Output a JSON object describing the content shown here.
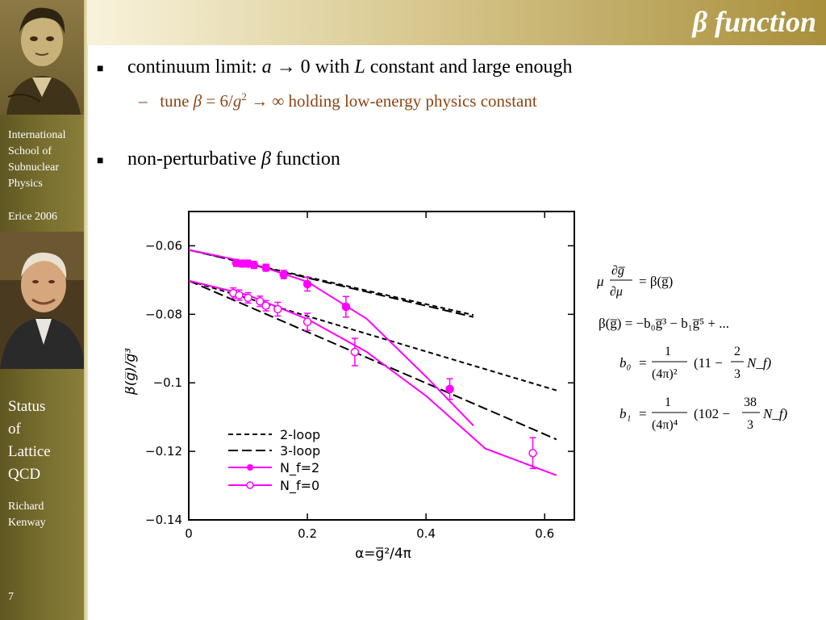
{
  "slide": {
    "title": "β function",
    "page_number": "7"
  },
  "sidebar": {
    "school_lines": [
      "International",
      "School of",
      "Subnuclear",
      "Physics"
    ],
    "event": "Erice 2006",
    "talk_lines": [
      "Status",
      "of",
      "Lattice",
      "QCD"
    ],
    "author_lines": [
      "Richard",
      "Kenway"
    ]
  },
  "bullets": [
    {
      "text_parts": [
        "continuum limit: ",
        "a",
        " → 0 with ",
        "L",
        " constant and large enough"
      ]
    },
    {
      "text_parts": [
        "non-perturbative ",
        "β",
        " function"
      ]
    }
  ],
  "sub_bullet": {
    "dash": "–",
    "text_parts": [
      "tune ",
      "β",
      " = 6/",
      "g",
      "2",
      " → ∞ holding low-energy physics constant"
    ]
  },
  "formulas": {
    "line1": [
      "μ",
      "∂g̅",
      "∂μ",
      "= β(g̅)"
    ],
    "line2": "β(g̅) = −b₀g̅³ − b₁g̅⁵ + ...",
    "b0": [
      "b₀",
      "=",
      "1",
      "(4π)²",
      "(11 −",
      "2",
      "3",
      "N_f)"
    ],
    "b1": [
      "b₁",
      "=",
      "1",
      "(4π)⁴",
      "(102 −",
      "38",
      "3",
      "N_f)"
    ]
  },
  "chart_data": {
    "type": "line",
    "xlabel": "α=g̅²/4π",
    "ylabel": "β(g̅)/g̅³",
    "xlim": [
      0,
      0.65
    ],
    "ylim": [
      -0.14,
      -0.05
    ],
    "xticks": [
      "0",
      "0.2",
      "0.4",
      "0.6"
    ],
    "yticks": [
      "-0.06",
      "-0.08",
      "-0.1",
      "-0.12",
      "-0.14"
    ],
    "legend_position": "bottom-left",
    "legend": [
      "2-loop",
      "3-loop",
      "N_f=2",
      "N_f=0"
    ],
    "colors": {
      "perturbative": "#000000",
      "lattice": "#ff00ff"
    },
    "series": [
      {
        "name": "2-loop",
        "style": "dashed",
        "group": "N_f=2",
        "x": [
          0,
          0.48
        ],
        "y": [
          -0.0612,
          -0.0802
        ]
      },
      {
        "name": "3-loop",
        "style": "long-dashed",
        "group": "N_f=2",
        "x": [
          0,
          0.48
        ],
        "y": [
          -0.0612,
          -0.0808
        ]
      },
      {
        "name": "2-loop",
        "style": "dashed",
        "group": "N_f=0",
        "x": [
          0,
          0.62
        ],
        "y": [
          -0.0702,
          -0.1022
        ]
      },
      {
        "name": "3-loop",
        "style": "long-dashed",
        "group": "N_f=0",
        "x": [
          0,
          0.62
        ],
        "y": [
          -0.0702,
          -0.1165
        ]
      },
      {
        "name": "N_f=2 fit",
        "style": "solid",
        "x": [
          0,
          0.1,
          0.2,
          0.3,
          0.4,
          0.48
        ],
        "y": [
          -0.0612,
          -0.0648,
          -0.0705,
          -0.0813,
          -0.0982,
          -0.1125
        ]
      },
      {
        "name": "N_f=0 fit",
        "style": "solid",
        "x": [
          0,
          0.1,
          0.2,
          0.3,
          0.4,
          0.5,
          0.62
        ],
        "y": [
          -0.0702,
          -0.0744,
          -0.0814,
          -0.091,
          -0.1038,
          -0.1192,
          -0.127
        ]
      }
    ],
    "points": [
      {
        "name": "N_f=2",
        "marker": "filled",
        "x": [
          0.08,
          0.09,
          0.1,
          0.11,
          0.13,
          0.16,
          0.2,
          0.265,
          0.44
        ],
        "y": [
          -0.065,
          -0.0652,
          -0.0652,
          -0.0656,
          -0.0664,
          -0.0684,
          -0.0712,
          -0.0778,
          -0.1018
        ],
        "err": [
          0.001,
          0.001,
          0.001,
          0.001,
          0.001,
          0.0012,
          0.002,
          0.003,
          0.003
        ]
      },
      {
        "name": "N_f=0",
        "marker": "open",
        "x": [
          0.075,
          0.085,
          0.1,
          0.12,
          0.13,
          0.15,
          0.2,
          0.28,
          0.58
        ],
        "y": [
          -0.0738,
          -0.0744,
          -0.0752,
          -0.0762,
          -0.0775,
          -0.0785,
          -0.0822,
          -0.091,
          -0.1205
        ],
        "err": [
          0.0015,
          0.0015,
          0.0015,
          0.0015,
          0.0015,
          0.002,
          0.0025,
          0.004,
          0.0045
        ]
      }
    ]
  }
}
